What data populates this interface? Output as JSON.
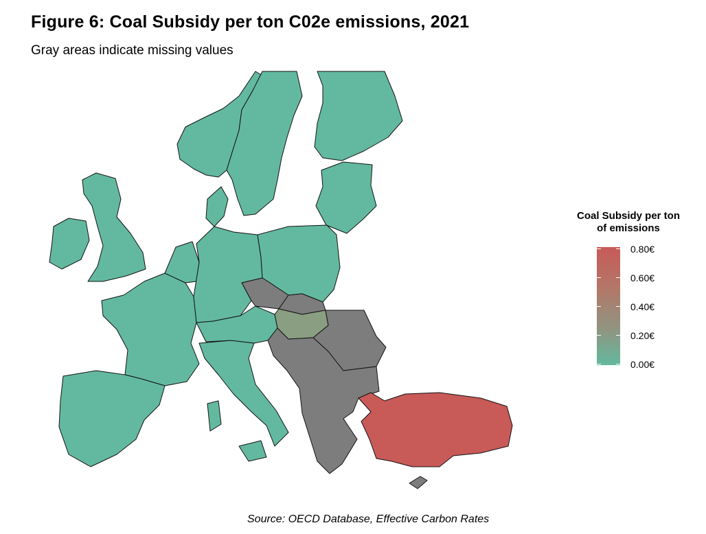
{
  "header": {
    "title": "Figure 6: Coal Subsidy per ton C02e emissions, 2021",
    "subtitle": "Gray areas indicate missing values"
  },
  "legend": {
    "title_line1": "Coal Subsidy per ton",
    "title_line2": "of emissions",
    "ticks": [
      "0.80€",
      "0.60€",
      "0.40€",
      "0.20€",
      "0.00€"
    ],
    "range": [
      0,
      0.8
    ],
    "color_low": "#63b99f",
    "color_high": "#c85a58",
    "missing_color": "#7d7d7d"
  },
  "footer": {
    "source": "Source: OECD Database, Effective Carbon Rates"
  },
  "map": {
    "regions": [
      {
        "group": "zero-subsidy",
        "value": 0.0,
        "color": "#63b99f"
      },
      {
        "group": "hungary",
        "value": 0.25,
        "color": "#8a9e82"
      },
      {
        "group": "turkey",
        "value": 0.8,
        "color": "#c85a58"
      },
      {
        "group": "missing",
        "value": null,
        "color": "#7d7d7d"
      }
    ]
  }
}
